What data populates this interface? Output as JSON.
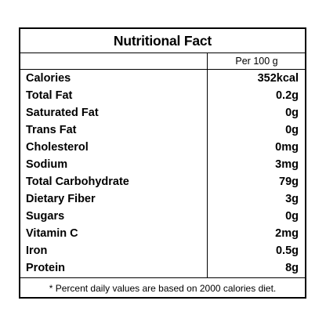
{
  "table": {
    "title": "Nutritional Fact",
    "column_header": "Per 100 g",
    "rows": [
      {
        "name": "Calories",
        "amount": "352kcal"
      },
      {
        "name": "Total Fat",
        "amount": "0.2g"
      },
      {
        "name": "Saturated Fat",
        "amount": "0g"
      },
      {
        "name": "Trans Fat",
        "amount": "0g"
      },
      {
        "name": "Cholesterol",
        "amount": "0mg"
      },
      {
        "name": "Sodium",
        "amount": "3mg"
      },
      {
        "name": "Total Carbohydrate",
        "amount": "79g"
      },
      {
        "name": "Dietary Fiber",
        "amount": "3g"
      },
      {
        "name": "Sugars",
        "amount": "0g"
      },
      {
        "name": "Vitamin C",
        "amount": "2mg"
      },
      {
        "name": "Iron",
        "amount": "0.5g"
      },
      {
        "name": "Protein",
        "amount": "8g"
      }
    ],
    "footnote": "* Percent daily values are based on 2000 calories diet."
  },
  "colors": {
    "text": "#000000",
    "border": "#000000",
    "background": "#ffffff"
  }
}
